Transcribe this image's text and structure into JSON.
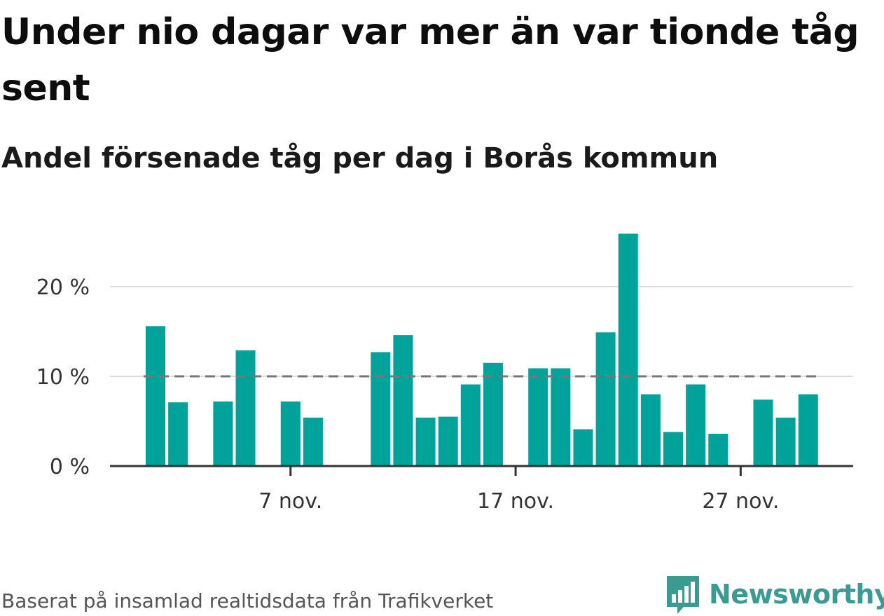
{
  "title": "Under nio dagar var mer än var tionde tåg sent",
  "subtitle": "Andel försenade tåg per dag i Borås kommun",
  "footer": "Baserat på insamlad realtidsdata från Trafikverket",
  "brand": "Newsworthy",
  "colors": {
    "bar": "#00a39a",
    "reference": "#777777",
    "grid": "#dddddd",
    "axis": "#333333",
    "brand": "#3a9b93"
  },
  "chart_data": {
    "type": "bar",
    "x_tick_labels": [
      "7 nov.",
      "17 nov.",
      "27 nov."
    ],
    "x_tick_days": [
      7,
      17,
      27
    ],
    "y_tick_labels": [
      "0 %",
      "10 %",
      "20 %"
    ],
    "y_tick_values": [
      0,
      10,
      20
    ],
    "ylim": [
      0,
      27
    ],
    "grid": true,
    "reference_line": 10,
    "days": [
      1,
      2,
      3,
      4,
      5,
      6,
      7,
      8,
      9,
      10,
      11,
      12,
      13,
      14,
      15,
      16,
      17,
      18,
      19,
      20,
      21,
      22,
      23,
      24,
      25,
      26,
      27,
      28,
      29,
      30
    ],
    "values": [
      15.6,
      7.1,
      null,
      7.2,
      12.9,
      null,
      7.2,
      5.4,
      null,
      null,
      12.7,
      14.6,
      5.4,
      5.5,
      9.1,
      11.5,
      null,
      10.9,
      10.9,
      4.1,
      14.9,
      25.9,
      8.0,
      3.8,
      9.1,
      3.6,
      null,
      7.4,
      5.4,
      8.0
    ]
  }
}
